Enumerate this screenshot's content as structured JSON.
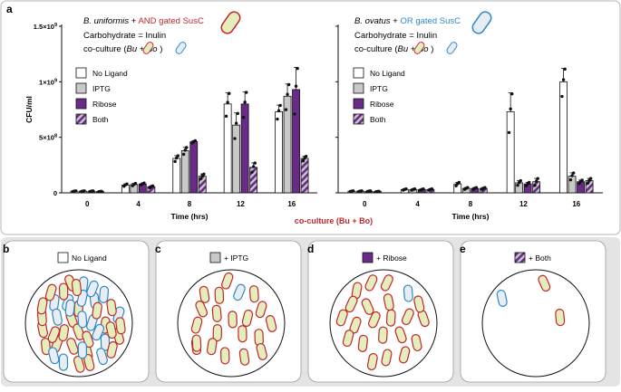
{
  "colors": {
    "no_ligand": "#ffffff",
    "iptg": "#c9c9c9",
    "ribose": "#6a2a8a",
    "both_a": "#6a2a8a",
    "both_b": "#c9c9c9",
    "bu_fill": "#e4edbb",
    "bu_stroke": "#c0262e",
    "bo_fill": "#e8edf2",
    "bo_stroke": "#2c88c8",
    "and_text": "#c0262e",
    "or_text": "#2c88c8",
    "panel_bg": "#ffffff",
    "bottom_bg": "#e4e4e4"
  },
  "panel_a": {
    "label": "a",
    "left": {
      "title_species": "B. uniformis",
      "title_plus": " + ",
      "title_gate": "AND gated SusC",
      "carb": "Carbohydrate = Inulin",
      "coculture_prefix": "co-culture (",
      "coculture_bu": "Bu",
      "coculture_plus": " + ",
      "coculture_bo": "Bo",
      "coculture_suffix": " )"
    },
    "right": {
      "title_species": "B. ovatus",
      "title_plus": " + ",
      "title_gate": "OR gated SusC",
      "carb": "Carbohydrate = Inulin",
      "coculture_prefix": "co-culture (",
      "coculture_bu": "Bu",
      "coculture_plus": " + ",
      "coculture_bo": "Bo",
      "coculture_suffix": " )"
    },
    "shared_xlabel": "co-culture (Bu + Bo)"
  },
  "chart_data": [
    {
      "type": "bar",
      "title": "B. uniformis + AND gated SusC",
      "xlabel": "Time (hrs)",
      "ylabel": "CFU/ml",
      "ylim": [
        0,
        1500000000
      ],
      "yticks": [
        {
          "value": 0,
          "base": "0",
          "exp": ""
        },
        {
          "value": 500000000,
          "base": "5×10",
          "exp": "8"
        },
        {
          "value": 1000000000,
          "base": "1×10",
          "exp": "9"
        },
        {
          "value": 1500000000,
          "base": "1.5×10",
          "exp": "9"
        }
      ],
      "categories": [
        "0",
        "4",
        "8",
        "12",
        "16"
      ],
      "legend": [
        "No Ligand",
        "IPTG",
        "Ribose",
        "Both"
      ],
      "series": [
        {
          "name": "No Ligand",
          "values": [
            15000000,
            70000000,
            310000000,
            800000000,
            730000000
          ],
          "errors": [
            3000000,
            10000000,
            25000000,
            100000000,
            60000000
          ]
        },
        {
          "name": "IPTG",
          "values": [
            15000000,
            75000000,
            380000000,
            610000000,
            870000000
          ],
          "errors": [
            3000000,
            10000000,
            30000000,
            110000000,
            110000000
          ]
        },
        {
          "name": "Ribose",
          "values": [
            15000000,
            80000000,
            460000000,
            800000000,
            930000000
          ],
          "errors": [
            3000000,
            8000000,
            10000000,
            110000000,
            200000000
          ]
        },
        {
          "name": "Both",
          "values": [
            12000000,
            55000000,
            150000000,
            230000000,
            310000000
          ],
          "errors": [
            2000000,
            8000000,
            20000000,
            40000000,
            20000000
          ]
        }
      ]
    },
    {
      "type": "bar",
      "title": "B. ovatus + OR gated SusC",
      "xlabel": "Time (hrs)",
      "ylabel": "",
      "ylim": [
        0,
        1500000000
      ],
      "categories": [
        "0",
        "4",
        "8",
        "12",
        "16"
      ],
      "legend": [
        "No Ligand",
        "IPTG",
        "Ribose",
        "Both"
      ],
      "series": [
        {
          "name": "No Ligand",
          "values": [
            15000000,
            30000000,
            80000000,
            730000000,
            1000000000
          ],
          "errors": [
            3000000,
            5000000,
            15000000,
            170000000,
            120000000
          ]
        },
        {
          "name": "IPTG",
          "values": [
            15000000,
            30000000,
            40000000,
            90000000,
            150000000
          ],
          "errors": [
            3000000,
            5000000,
            8000000,
            20000000,
            30000000
          ]
        },
        {
          "name": "Ribose",
          "values": [
            15000000,
            30000000,
            40000000,
            80000000,
            100000000
          ],
          "errors": [
            3000000,
            5000000,
            8000000,
            15000000,
            15000000
          ]
        },
        {
          "name": "Both",
          "values": [
            12000000,
            30000000,
            40000000,
            100000000,
            110000000
          ],
          "errors": [
            2000000,
            5000000,
            8000000,
            30000000,
            20000000
          ]
        }
      ]
    }
  ],
  "cells": [
    {
      "label": "b",
      "legend_text": "No Ligand",
      "swatch": "no_ligand",
      "bu_count": 26,
      "bo_count": 18
    },
    {
      "label": "c",
      "legend_text": "+ IPTG",
      "swatch": "iptg",
      "bu_count": 20,
      "bo_count": 1
    },
    {
      "label": "d",
      "legend_text": "+ Ribose",
      "swatch": "ribose",
      "bu_count": 21,
      "bo_count": 1
    },
    {
      "label": "e",
      "legend_text": "+ Both",
      "swatch": "both",
      "bu_count": 2,
      "bo_count": 1
    }
  ]
}
